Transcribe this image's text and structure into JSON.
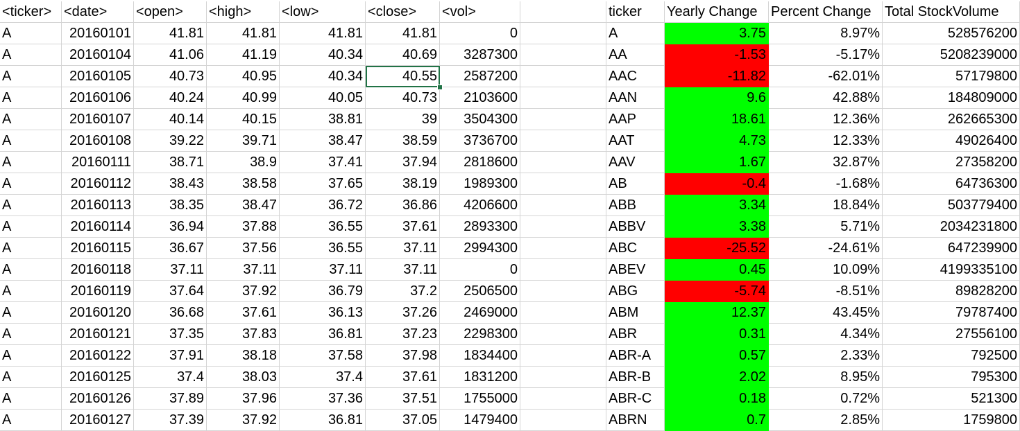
{
  "left_table": {
    "headers": [
      "<ticker>",
      "<date>",
      "<open>",
      "<high>",
      "<low>",
      "<close>",
      "<vol>"
    ],
    "rows": [
      [
        "A",
        "20160101",
        "41.81",
        "41.81",
        "41.81",
        "41.81",
        "0"
      ],
      [
        "A",
        "20160104",
        "41.06",
        "41.19",
        "40.34",
        "40.69",
        "3287300"
      ],
      [
        "A",
        "20160105",
        "40.73",
        "40.95",
        "40.34",
        "40.55",
        "2587200"
      ],
      [
        "A",
        "20160106",
        "40.24",
        "40.99",
        "40.05",
        "40.73",
        "2103600"
      ],
      [
        "A",
        "20160107",
        "40.14",
        "40.15",
        "38.81",
        "39",
        "3504300"
      ],
      [
        "A",
        "20160108",
        "39.22",
        "39.71",
        "38.47",
        "38.59",
        "3736700"
      ],
      [
        "A",
        "20160111",
        "38.71",
        "38.9",
        "37.41",
        "37.94",
        "2818600"
      ],
      [
        "A",
        "20160112",
        "38.43",
        "38.58",
        "37.65",
        "38.19",
        "1989300"
      ],
      [
        "A",
        "20160113",
        "38.35",
        "38.47",
        "36.72",
        "36.86",
        "4206600"
      ],
      [
        "A",
        "20160114",
        "36.94",
        "37.88",
        "36.55",
        "37.61",
        "2893300"
      ],
      [
        "A",
        "20160115",
        "36.67",
        "37.56",
        "36.55",
        "37.11",
        "2994300"
      ],
      [
        "A",
        "20160118",
        "37.11",
        "37.11",
        "37.11",
        "37.11",
        "0"
      ],
      [
        "A",
        "20160119",
        "37.64",
        "37.92",
        "36.79",
        "37.2",
        "2506500"
      ],
      [
        "A",
        "20160120",
        "36.68",
        "37.61",
        "36.13",
        "37.26",
        "2469000"
      ],
      [
        "A",
        "20160121",
        "37.35",
        "37.83",
        "36.81",
        "37.23",
        "2298300"
      ],
      [
        "A",
        "20160122",
        "37.91",
        "38.18",
        "37.58",
        "37.98",
        "1834400"
      ],
      [
        "A",
        "20160125",
        "37.4",
        "38.03",
        "37.4",
        "37.61",
        "1831200"
      ],
      [
        "A",
        "20160126",
        "37.89",
        "37.96",
        "37.36",
        "37.51",
        "1755000"
      ],
      [
        "A",
        "20160127",
        "37.39",
        "37.92",
        "36.81",
        "37.05",
        "1479400"
      ]
    ]
  },
  "right_table": {
    "headers": [
      "ticker",
      "Yearly Change",
      "Percent Change",
      "Total StockVolume"
    ],
    "rows": [
      {
        "ticker": "A",
        "yearly_change": "3.75",
        "percent_change": "8.97%",
        "total_volume": "528576200",
        "status": "positive"
      },
      {
        "ticker": "AA",
        "yearly_change": "-1.53",
        "percent_change": "-5.17%",
        "total_volume": "5208239000",
        "status": "negative"
      },
      {
        "ticker": "AAC",
        "yearly_change": "-11.82",
        "percent_change": "-62.01%",
        "total_volume": "57179800",
        "status": "negative"
      },
      {
        "ticker": "AAN",
        "yearly_change": "9.6",
        "percent_change": "42.88%",
        "total_volume": "184809000",
        "status": "positive"
      },
      {
        "ticker": "AAP",
        "yearly_change": "18.61",
        "percent_change": "12.36%",
        "total_volume": "262665300",
        "status": "positive"
      },
      {
        "ticker": "AAT",
        "yearly_change": "4.73",
        "percent_change": "12.33%",
        "total_volume": "49026400",
        "status": "positive"
      },
      {
        "ticker": "AAV",
        "yearly_change": "1.67",
        "percent_change": "32.87%",
        "total_volume": "27358200",
        "status": "positive"
      },
      {
        "ticker": "AB",
        "yearly_change": "-0.4",
        "percent_change": "-1.68%",
        "total_volume": "64736300",
        "status": "negative"
      },
      {
        "ticker": "ABB",
        "yearly_change": "3.34",
        "percent_change": "18.84%",
        "total_volume": "503779400",
        "status": "positive"
      },
      {
        "ticker": "ABBV",
        "yearly_change": "3.38",
        "percent_change": "5.71%",
        "total_volume": "2034231800",
        "status": "positive"
      },
      {
        "ticker": "ABC",
        "yearly_change": "-25.52",
        "percent_change": "-24.61%",
        "total_volume": "647239900",
        "status": "negative"
      },
      {
        "ticker": "ABEV",
        "yearly_change": "0.45",
        "percent_change": "10.09%",
        "total_volume": "4199335100",
        "status": "positive"
      },
      {
        "ticker": "ABG",
        "yearly_change": "-5.74",
        "percent_change": "-8.51%",
        "total_volume": "89828200",
        "status": "negative"
      },
      {
        "ticker": "ABM",
        "yearly_change": "12.37",
        "percent_change": "43.45%",
        "total_volume": "79787400",
        "status": "positive"
      },
      {
        "ticker": "ABR",
        "yearly_change": "0.31",
        "percent_change": "4.34%",
        "total_volume": "27556100",
        "status": "positive"
      },
      {
        "ticker": "ABR-A",
        "yearly_change": "0.57",
        "percent_change": "2.33%",
        "total_volume": "792500",
        "status": "positive"
      },
      {
        "ticker": "ABR-B",
        "yearly_change": "2.02",
        "percent_change": "8.95%",
        "total_volume": "795300",
        "status": "positive"
      },
      {
        "ticker": "ABR-C",
        "yearly_change": "0.18",
        "percent_change": "0.72%",
        "total_volume": "521300",
        "status": "positive"
      },
      {
        "ticker": "ABRN",
        "yearly_change": "0.7",
        "percent_change": "2.85%",
        "total_volume": "1759800",
        "status": "positive"
      }
    ]
  },
  "selection": {
    "row": 2,
    "column": "<close>"
  },
  "colors": {
    "positive_fill": "#00ff00",
    "negative_fill": "#ff0000",
    "gridline": "#d4d4d4",
    "selection_border": "#217346"
  }
}
